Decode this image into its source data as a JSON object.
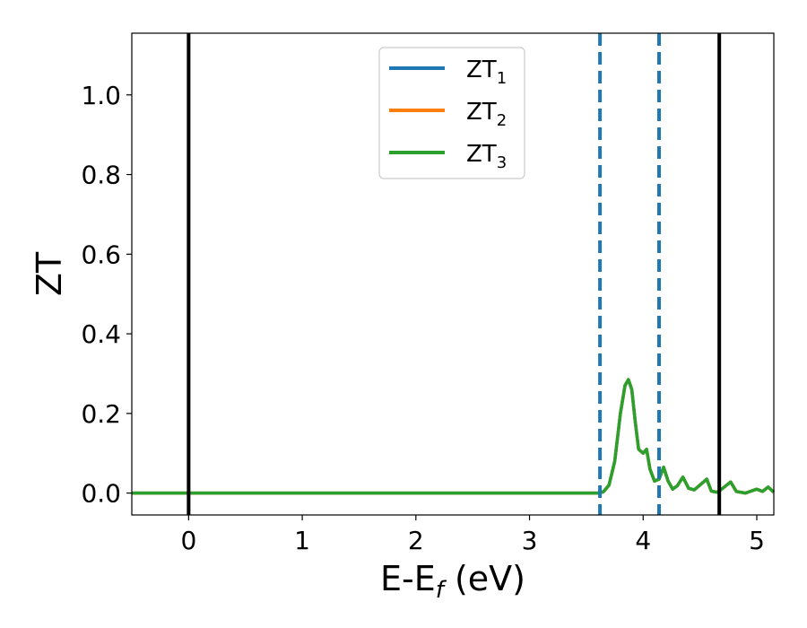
{
  "chart_data": {
    "type": "line",
    "xlabel_main": "E-E",
    "xlabel_sub": "f",
    "xlabel_tail": " (eV)",
    "ylabel": "ZT",
    "xlim": [
      -0.5,
      5.15
    ],
    "ylim": [
      -0.055,
      1.155
    ],
    "xticks": [
      0,
      1,
      2,
      3,
      4,
      5
    ],
    "xtick_labels": [
      "0",
      "1",
      "2",
      "3",
      "4",
      "5"
    ],
    "yticks": [
      0.0,
      0.2,
      0.4,
      0.6,
      0.8,
      1.0
    ],
    "ytick_labels": [
      "0.0",
      "0.2",
      "0.4",
      "0.6",
      "0.8",
      "1.0"
    ],
    "grid": false,
    "legend_position": "top-center",
    "vlines_solid": [
      0.0,
      4.67
    ],
    "vlines_dashed": [
      3.62,
      4.14
    ],
    "vline_solid_color": "#000000",
    "vline_dashed_color": "#1f77b4",
    "series": [
      {
        "name_main": "ZT",
        "name_sub": "1",
        "color": "#1f77b4",
        "x": [
          -0.5,
          3.6,
          3.65,
          3.7,
          3.75,
          3.8,
          3.84,
          3.87,
          3.9,
          3.93,
          3.96,
          4.0,
          4.03,
          4.06,
          4.1,
          4.14,
          4.18,
          4.22,
          4.26,
          4.3,
          4.35,
          4.4,
          4.45,
          4.5,
          4.56,
          4.6,
          4.65,
          4.7,
          4.77,
          4.82,
          4.9,
          5.0,
          5.05,
          5.1,
          5.15
        ],
        "y": [
          0.0,
          0.0,
          0.003,
          0.02,
          0.08,
          0.2,
          0.27,
          0.285,
          0.26,
          0.18,
          0.11,
          0.1,
          0.11,
          0.06,
          0.03,
          0.035,
          0.065,
          0.03,
          0.01,
          0.018,
          0.04,
          0.012,
          0.008,
          0.02,
          0.035,
          0.005,
          0.002,
          0.012,
          0.028,
          0.004,
          0.0,
          0.01,
          0.004,
          0.015,
          0.002
        ]
      },
      {
        "name_main": "ZT",
        "name_sub": "2",
        "color": "#ff7f0e",
        "x": [
          -0.5,
          3.6,
          3.65,
          3.7,
          3.75,
          3.8,
          3.84,
          3.87,
          3.9,
          3.93,
          3.96,
          4.0,
          4.03,
          4.06,
          4.1,
          4.14,
          4.18,
          4.22,
          4.26,
          4.3,
          4.35,
          4.4,
          4.45,
          4.5,
          4.56,
          4.6,
          4.65,
          4.7,
          4.77,
          4.82,
          4.9,
          5.0,
          5.05,
          5.1,
          5.15
        ],
        "y": [
          0.0,
          0.0,
          0.003,
          0.02,
          0.08,
          0.2,
          0.27,
          0.285,
          0.26,
          0.18,
          0.11,
          0.1,
          0.11,
          0.06,
          0.03,
          0.035,
          0.065,
          0.03,
          0.01,
          0.018,
          0.04,
          0.012,
          0.008,
          0.02,
          0.035,
          0.005,
          0.002,
          0.012,
          0.028,
          0.004,
          0.0,
          0.01,
          0.004,
          0.015,
          0.002
        ]
      },
      {
        "name_main": "ZT",
        "name_sub": "3",
        "color": "#2ca02c",
        "x": [
          -0.5,
          3.6,
          3.65,
          3.7,
          3.75,
          3.8,
          3.84,
          3.87,
          3.9,
          3.93,
          3.96,
          4.0,
          4.03,
          4.06,
          4.1,
          4.14,
          4.18,
          4.22,
          4.26,
          4.3,
          4.35,
          4.4,
          4.45,
          4.5,
          4.56,
          4.6,
          4.65,
          4.7,
          4.77,
          4.82,
          4.9,
          5.0,
          5.05,
          5.1,
          5.15
        ],
        "y": [
          0.0,
          0.0,
          0.003,
          0.02,
          0.08,
          0.2,
          0.27,
          0.285,
          0.26,
          0.18,
          0.11,
          0.1,
          0.11,
          0.06,
          0.03,
          0.035,
          0.065,
          0.03,
          0.01,
          0.018,
          0.04,
          0.012,
          0.008,
          0.02,
          0.035,
          0.005,
          0.002,
          0.012,
          0.028,
          0.004,
          0.0,
          0.01,
          0.004,
          0.015,
          0.002
        ]
      }
    ]
  }
}
